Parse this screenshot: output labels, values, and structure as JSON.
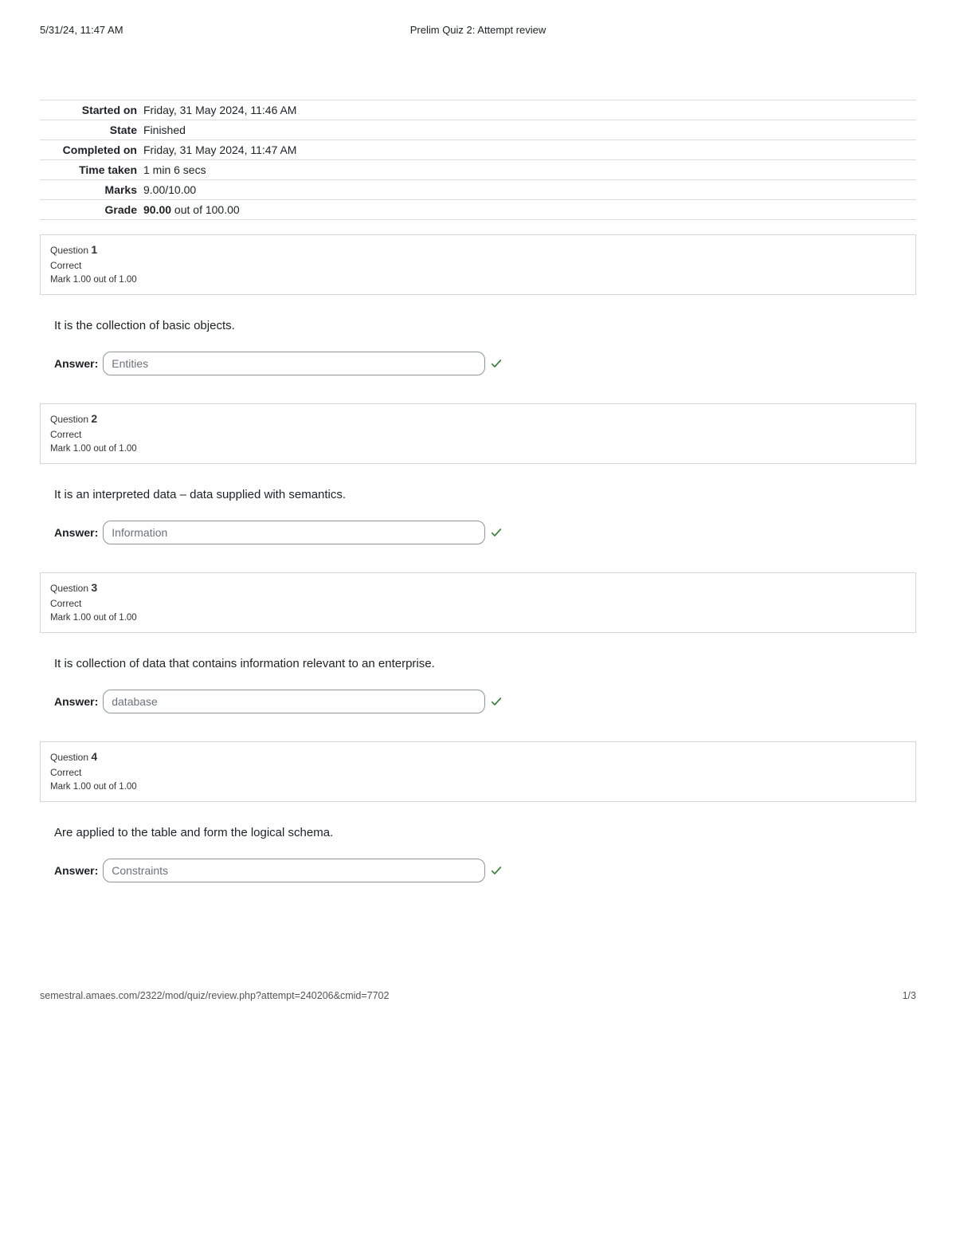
{
  "header": {
    "timestamp": "5/31/24, 11:47 AM",
    "title": "Prelim Quiz 2: Attempt review"
  },
  "summary": {
    "rows": [
      {
        "label": "Started on",
        "value": "Friday, 31 May 2024, 11:46 AM"
      },
      {
        "label": "State",
        "value": "Finished"
      },
      {
        "label": "Completed on",
        "value": "Friday, 31 May 2024, 11:47 AM"
      },
      {
        "label": "Time taken",
        "value": "1 min 6 secs"
      },
      {
        "label": "Marks",
        "value": "9.00/10.00"
      }
    ],
    "grade_label": "Grade",
    "grade_bold": "90.00",
    "grade_rest": " out of 100.00"
  },
  "questions": [
    {
      "number": "1",
      "status": "Correct",
      "mark": "Mark 1.00 out of 1.00",
      "text": "It is the collection of basic objects.",
      "answer_label": "Answer:",
      "answer_value": "Entities",
      "correct": true
    },
    {
      "number": "2",
      "status": "Correct",
      "mark": "Mark 1.00 out of 1.00",
      "text": "It is an interpreted data – data supplied with semantics.",
      "answer_label": "Answer:",
      "answer_value": "Information",
      "correct": true
    },
    {
      "number": "3",
      "status": "Correct",
      "mark": "Mark 1.00 out of 1.00",
      "text": "It is collection of data that contains information relevant to an enterprise.",
      "answer_label": "Answer:",
      "answer_value": "database",
      "correct": true
    },
    {
      "number": "4",
      "status": "Correct",
      "mark": "Mark 1.00 out of 1.00",
      "text": "Are applied to the table and form the logical schema.",
      "answer_label": "Answer:",
      "answer_value": "Constraints",
      "correct": true
    }
  ],
  "footer": {
    "url": "semestral.amaes.com/2322/mod/quiz/review.php?attempt=240206&cmid=7702",
    "page": "1/3"
  }
}
